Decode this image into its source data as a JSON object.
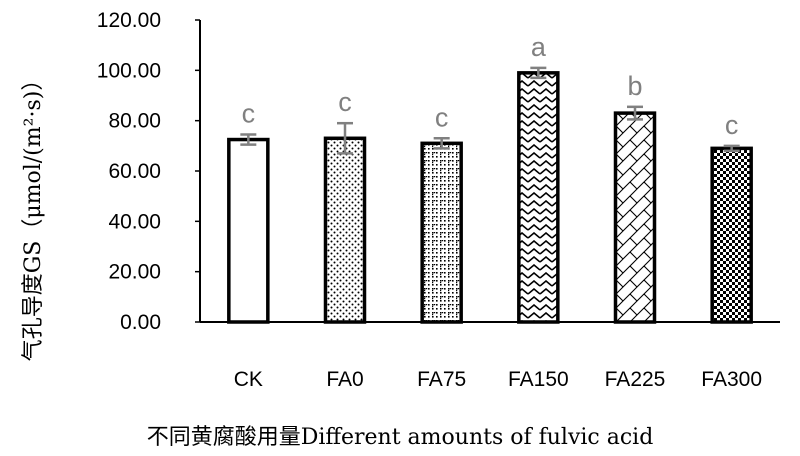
{
  "chart_data": {
    "type": "bar",
    "ylabel": "气孔导度GS（μmol/(m²·s)）",
    "xlabel": "不同黄腐酸用量Different amounts of fulvic acid",
    "categories": [
      "CK",
      "FA0",
      "FA75",
      "FA150",
      "FA225",
      "FA300"
    ],
    "values": [
      72.5,
      73.0,
      71.0,
      99.0,
      83.0,
      69.0
    ],
    "errors": [
      2.0,
      6.0,
      2.0,
      2.0,
      2.5,
      1.0
    ],
    "significance": [
      "c",
      "c",
      "c",
      "a",
      "b",
      "c"
    ],
    "ylim": [
      0,
      120
    ],
    "yticks": [
      "0.00",
      "20.00",
      "40.00",
      "60.00",
      "80.00",
      "100.00",
      "120.00"
    ],
    "fill_patterns": [
      "none",
      "dots",
      "dotted-grid",
      "zigzag",
      "diagonal-lattice",
      "checker"
    ],
    "colors": {
      "bar_stroke": "#000000",
      "error_bar": "#808080",
      "significance_text": "#808080",
      "axis": "#000000"
    }
  }
}
